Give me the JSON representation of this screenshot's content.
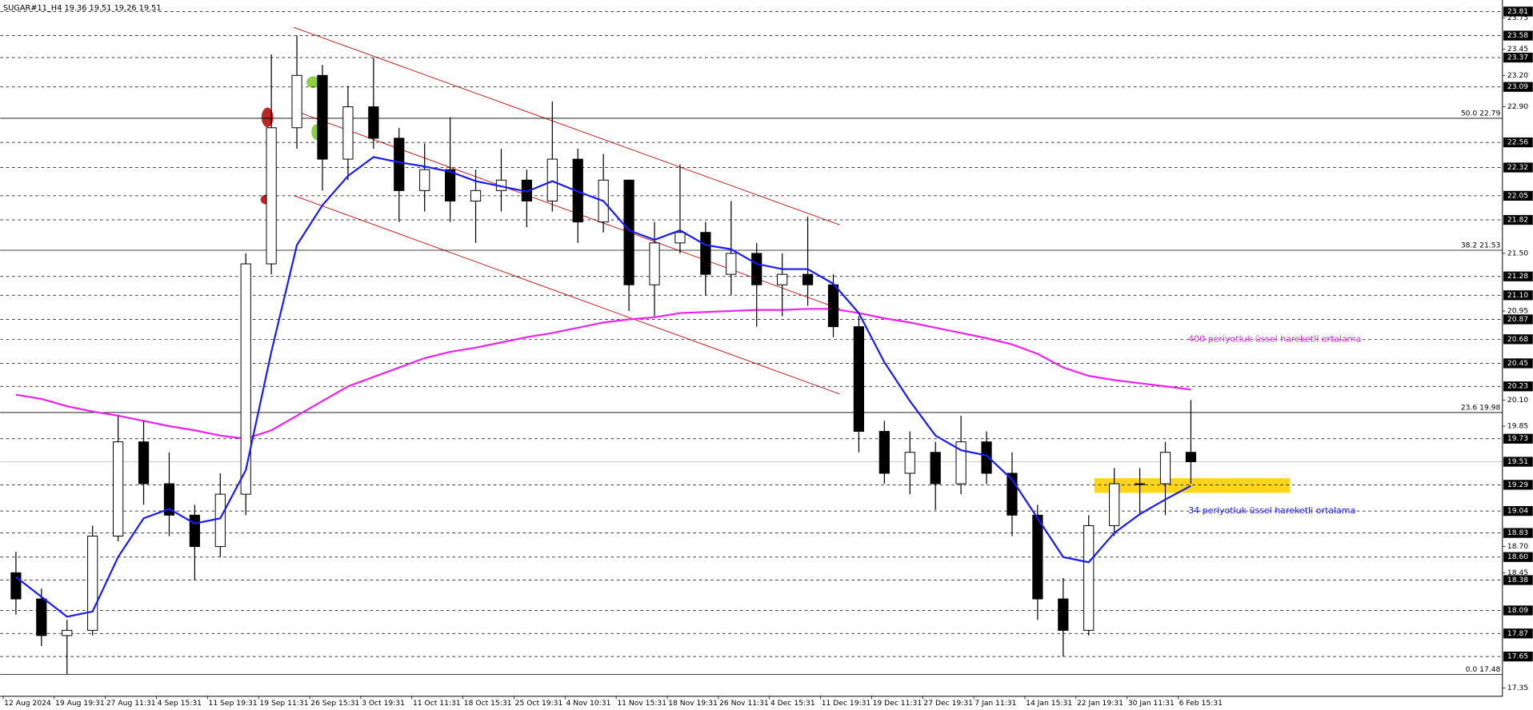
{
  "chart_data": {
    "type": "candlestick",
    "title": "SUGAR#11_H4  19.36 19.51 19.26 19.51",
    "categories": [
      "12 Aug 2024",
      null,
      "19 Aug 19:31",
      null,
      "27 Aug 11:31",
      null,
      "4 Sep 15:31",
      null,
      "11 Sep 19:31",
      null,
      "19 Sep 11:31",
      null,
      "26 Sep 15:31",
      null,
      "3 Oct 19:31",
      null,
      "11 Oct 11:31",
      null,
      "18 Oct 15:31",
      null,
      "25 Oct 19:31",
      null,
      "4 Nov 10:31",
      null,
      "11 Nov 15:31",
      null,
      "18 Nov 19:31",
      null,
      "26 Nov 11:31",
      null,
      "4 Dec 15:31",
      null,
      "11 Dec 19:31",
      null,
      "19 Dec 11:31",
      null,
      "27 Dec 19:31",
      null,
      "7 Jan 11:31",
      null,
      "14 Jan 15:31",
      null,
      "22 Jan 19:31",
      null,
      "30 Jan 11:31",
      null,
      "6 Feb 15:31"
    ],
    "open": [
      18.45,
      18.2,
      17.85,
      17.9,
      18.8,
      19.7,
      19.3,
      19.0,
      18.7,
      19.2,
      21.4,
      22.7,
      23.2,
      22.4,
      22.9,
      22.6,
      22.1,
      22.3,
      22.0,
      22.1,
      22.2,
      22.0,
      22.4,
      21.8,
      22.2,
      21.2,
      21.6,
      21.7,
      21.3,
      21.5,
      21.2,
      21.3,
      21.2,
      20.8,
      19.8,
      19.4,
      19.6,
      19.3,
      19.7,
      19.4,
      19.0,
      18.2,
      17.9,
      18.9,
      19.3,
      19.3,
      19.6
    ],
    "high": [
      18.65,
      18.3,
      18.0,
      18.9,
      19.95,
      19.9,
      19.6,
      19.1,
      19.4,
      21.5,
      23.4,
      23.58,
      23.3,
      23.1,
      23.37,
      22.7,
      22.55,
      22.8,
      22.3,
      22.5,
      22.3,
      22.95,
      22.5,
      22.45,
      22.2,
      21.8,
      22.35,
      21.8,
      22.0,
      21.6,
      21.5,
      21.85,
      21.3,
      20.9,
      19.9,
      19.8,
      19.7,
      19.95,
      19.8,
      19.6,
      19.1,
      18.4,
      19.0,
      19.45,
      19.45,
      19.7,
      20.1
    ],
    "low": [
      18.05,
      17.75,
      17.48,
      17.85,
      18.75,
      19.1,
      18.8,
      18.38,
      18.6,
      19.0,
      21.3,
      22.5,
      22.1,
      22.2,
      22.5,
      21.8,
      21.9,
      21.8,
      21.6,
      21.9,
      21.75,
      21.9,
      21.6,
      21.7,
      20.95,
      20.9,
      21.5,
      21.1,
      21.1,
      20.8,
      20.9,
      21.0,
      20.7,
      19.6,
      19.3,
      19.2,
      19.05,
      19.2,
      19.3,
      18.8,
      18.0,
      17.65,
      17.85,
      18.8,
      19.0,
      19.0,
      19.3
    ],
    "close": [
      18.2,
      17.85,
      17.9,
      18.8,
      19.7,
      19.3,
      19.0,
      18.7,
      19.2,
      21.4,
      22.7,
      23.2,
      22.4,
      22.9,
      22.6,
      22.1,
      22.3,
      22.0,
      22.1,
      22.2,
      22.0,
      22.4,
      21.8,
      22.2,
      21.2,
      21.6,
      21.7,
      21.3,
      21.5,
      21.2,
      21.3,
      21.2,
      20.8,
      19.8,
      19.4,
      19.6,
      19.3,
      19.7,
      19.4,
      19.0,
      18.2,
      17.9,
      18.9,
      19.3,
      19.3,
      19.6,
      19.51
    ],
    "ema34": {
      "color": "#1a1aff",
      "values": [
        18.41,
        18.22,
        18.03,
        18.08,
        18.6,
        18.97,
        19.06,
        18.92,
        18.97,
        19.43,
        20.56,
        21.58,
        21.96,
        22.24,
        22.42,
        22.37,
        22.33,
        22.28,
        22.19,
        22.14,
        22.09,
        22.19,
        22.09,
        22.0,
        21.72,
        21.63,
        21.72,
        21.58,
        21.54,
        21.4,
        21.35,
        21.35,
        21.21,
        20.93,
        20.46,
        20.09,
        19.76,
        19.62,
        19.57,
        19.34,
        18.97,
        18.6,
        18.55,
        18.83,
        19.01,
        19.15,
        19.28
      ]
    },
    "ema400": {
      "color": "#ee22ee",
      "values": [
        20.15,
        20.11,
        20.04,
        19.99,
        19.95,
        19.9,
        19.85,
        19.81,
        19.76,
        19.73,
        19.81,
        19.95,
        20.09,
        20.23,
        20.32,
        20.41,
        20.5,
        20.56,
        20.6,
        20.65,
        20.7,
        20.74,
        20.79,
        20.84,
        20.87,
        20.89,
        20.93,
        20.94,
        20.95,
        20.96,
        20.96,
        20.97,
        20.97,
        20.93,
        20.88,
        20.84,
        20.79,
        20.74,
        20.69,
        20.63,
        20.54,
        20.41,
        20.33,
        20.29,
        20.26,
        20.23,
        20.2
      ]
    },
    "annotations": [
      {
        "text": "400 periyotluk üssel hareketli ortalama",
        "color": "#ee22ee",
        "y": 20.68
      },
      {
        "text": "34 periyotluk üssel hareketli ortalama",
        "color": "#1a1aff",
        "y": 19.04
      }
    ],
    "ylim": [
      17.27,
      23.92
    ],
    "yticks": [
      23.75,
      23.45,
      {
        "value": 23.2,
        "label": "23.20"
      },
      {
        "value": 22.9,
        "label": "22.90"
      },
      {
        "value": 21.5,
        "label": "21.50"
      },
      20.95,
      {
        "value": 20.1,
        "label": "20.10"
      },
      19.85,
      {
        "value": 18.7,
        "label": "18.70"
      },
      18.45,
      17.35
    ],
    "levels": [
      23.81,
      23.58,
      23.37,
      23.09,
      22.56,
      22.32,
      22.05,
      21.82,
      21.28,
      {
        "value": 21.1,
        "label": "21.10"
      },
      20.87,
      20.68,
      20.45,
      20.23,
      19.73,
      19.29,
      19.04,
      18.83,
      {
        "value": 18.6,
        "label": "18.60"
      },
      18.38,
      18.09,
      17.87,
      17.65
    ],
    "fib_levels": [
      {
        "value": 22.79,
        "label": "50.0 22.79"
      },
      {
        "value": 21.53,
        "label": "38.2 21.53"
      },
      {
        "value": 19.98,
        "label": "23.6 19.98"
      },
      {
        "value": 17.48,
        "label": "0.0 17.48"
      }
    ],
    "current_price": 19.51
  }
}
